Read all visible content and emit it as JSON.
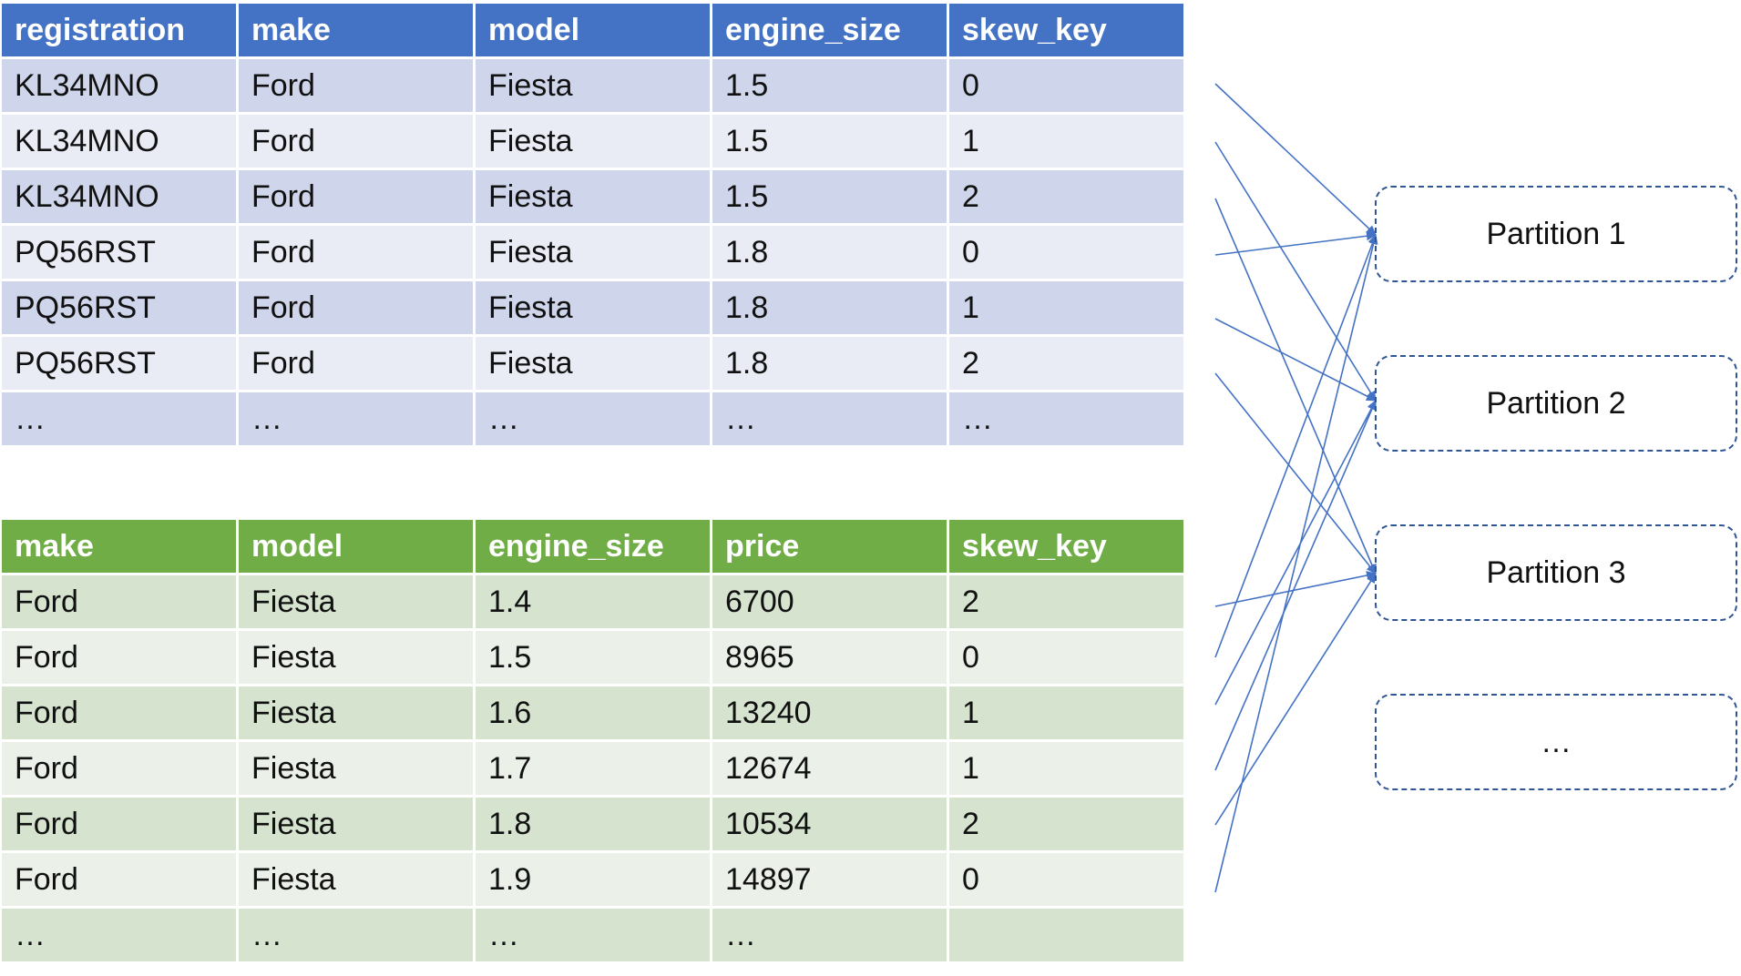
{
  "cars_table": {
    "headers": [
      "registration",
      "make",
      "model",
      "engine_size",
      "skew_key"
    ],
    "rows": [
      [
        "KL34MNO",
        "Ford",
        "Fiesta",
        "1.5",
        "0"
      ],
      [
        "KL34MNO",
        "Ford",
        "Fiesta",
        "1.5",
        "1"
      ],
      [
        "KL34MNO",
        "Ford",
        "Fiesta",
        "1.5",
        "2"
      ],
      [
        "PQ56RST",
        "Ford",
        "Fiesta",
        "1.8",
        "0"
      ],
      [
        "PQ56RST",
        "Ford",
        "Fiesta",
        "1.8",
        "1"
      ],
      [
        "PQ56RST",
        "Ford",
        "Fiesta",
        "1.8",
        "2"
      ],
      [
        "…",
        "…",
        "…",
        "…",
        "…"
      ]
    ]
  },
  "prices_table": {
    "headers": [
      "make",
      "model",
      "engine_size",
      "price",
      "skew_key"
    ],
    "rows": [
      [
        "Ford",
        "Fiesta",
        "1.4",
        "6700",
        "2"
      ],
      [
        "Ford",
        "Fiesta",
        "1.5",
        "8965",
        "0"
      ],
      [
        "Ford",
        "Fiesta",
        "1.6",
        "13240",
        "1"
      ],
      [
        "Ford",
        "Fiesta",
        "1.7",
        "12674",
        "1"
      ],
      [
        "Ford",
        "Fiesta",
        "1.8",
        "10534",
        "2"
      ],
      [
        "Ford",
        "Fiesta",
        "1.9",
        "14897",
        "0"
      ],
      [
        "…",
        "…",
        "…",
        "…",
        ""
      ]
    ]
  },
  "partitions": [
    "Partition 1",
    "Partition 2",
    "Partition 3",
    "…"
  ],
  "colors": {
    "cars_header": "#4472C4",
    "prices_header": "#70AD47",
    "arrow": "#4472C4",
    "partition_border": "#2F5597"
  }
}
